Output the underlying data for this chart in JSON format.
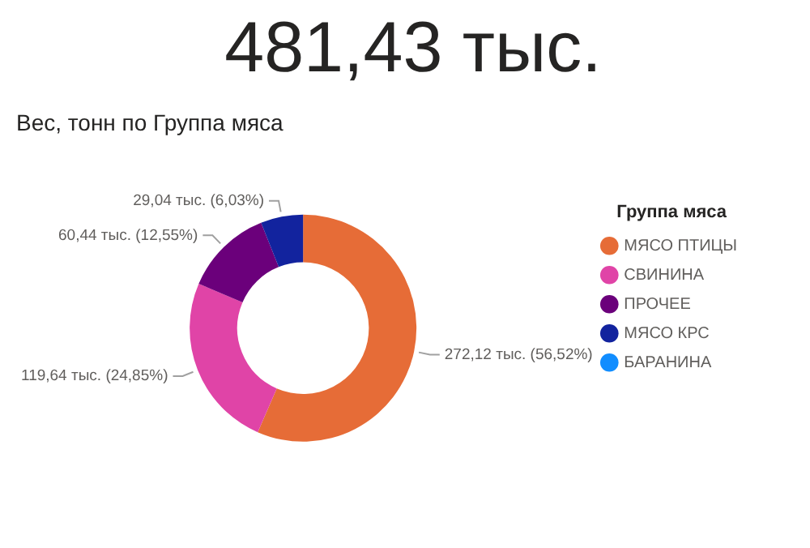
{
  "chart_data": [
    {
      "type": "other",
      "title": "481,43 тыс."
    },
    {
      "type": "donut",
      "title": "Вес, тонн по Группа мяса",
      "legend_title": "Группа мяса",
      "legend": "right",
      "categories": [
        "МЯСО ПТИЦЫ",
        "СВИНИНА",
        "ПРОЧЕЕ",
        "МЯСО КРС",
        "БАРАНИНА"
      ],
      "values": [
        272.12,
        119.64,
        60.44,
        29.04,
        null
      ],
      "colors": [
        "#e66c37",
        "#e044a7",
        "#6b007b",
        "#12239e",
        "#118dff"
      ],
      "value_labels": [
        "272,12 тыс. (56,52%)",
        "119,64 тыс. (24,85%)",
        "60,44 тыс. (12,55%)",
        "29,04 тыс. (6,03%)",
        null
      ]
    }
  ]
}
